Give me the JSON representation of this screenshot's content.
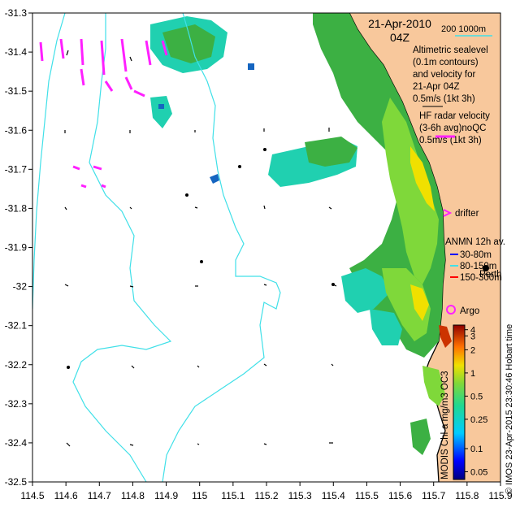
{
  "map": {
    "date_title": "21-Apr-2010",
    "time_title": "04Z",
    "bathy_label": "200  1000m",
    "legend": {
      "altimetric": [
        "Altimetric sealevel",
        "(0.1m contours)",
        "and velocity for",
        "21-Apr 04Z",
        "0.5m/s (1kt 3h)"
      ],
      "hf_radar": [
        "HF radar velocity",
        "(3-6h avg)noQC",
        "0.5m/s (1kt 3h)"
      ],
      "drifter": "drifter",
      "anmn_title": "ANMN 12h av.",
      "anmn_depths": [
        "30-80m",
        "80-150m",
        "150-300m"
      ],
      "argo": "Argo"
    },
    "city_label": "Perth",
    "colorbar_label": "MODIS Chl-a mg/m3 OC3",
    "credit": "© IMOS 23-Apr-2015 23:30:46 Hobart time",
    "colorbar_ticks": [
      "4",
      "3",
      "2",
      "1",
      "0.5",
      "0.25",
      "0.1",
      "0.05"
    ],
    "x_ticks": [
      "114.5",
      "114.6",
      "114.7",
      "114.8",
      "114.9",
      "115",
      "115.1",
      "115.2",
      "115.3",
      "115.4",
      "115.5",
      "115.6",
      "115.7",
      "115.8",
      "115.9"
    ],
    "y_ticks": [
      "-31.3",
      "-31.4",
      "-31.5",
      "-31.6",
      "-31.7",
      "-31.8",
      "-31.9",
      "-32",
      "-32.1",
      "-32.2",
      "-32.3",
      "-32.4",
      "-32.5"
    ],
    "colors": {
      "land": "#f8c89c",
      "contour": "#40e0e8",
      "chl_green": "#3cb043",
      "chl_cyan": "#20d0b0",
      "hf_radar": "#ff20ff",
      "argo": "#ff20ff"
    }
  }
}
